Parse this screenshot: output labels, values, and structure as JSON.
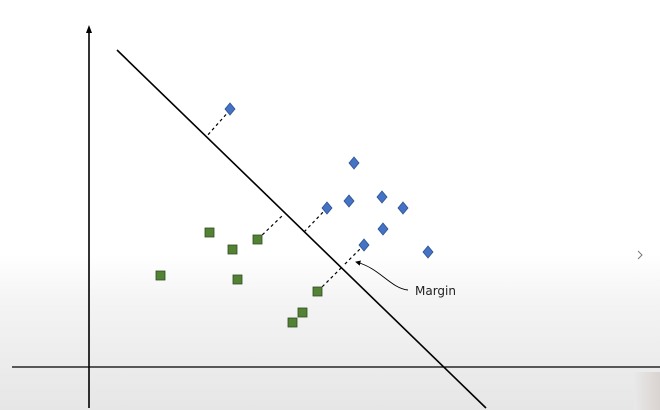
{
  "annotation": {
    "margin_label": "Margin"
  },
  "colors": {
    "class_a": "#4472c4",
    "class_a_stroke": "#2f528f",
    "class_b": "#548235",
    "class_b_stroke": "#2e4d1e",
    "axis": "#000000",
    "boundary": "#000000",
    "margin_line": "#000000"
  },
  "icons": {
    "class_a_marker": "diamond",
    "class_b_marker": "square",
    "side_mark": "chevron-right-icon"
  }
}
